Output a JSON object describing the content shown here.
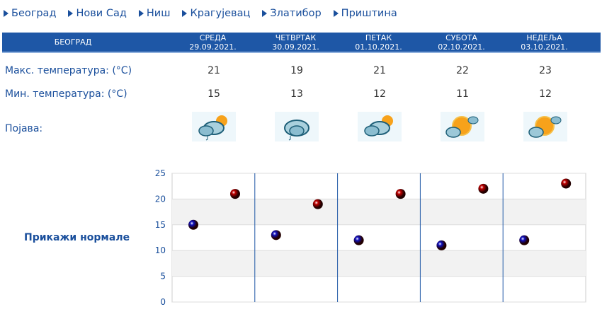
{
  "nav": [
    {
      "label": "Београд"
    },
    {
      "label": "Нови Сад"
    },
    {
      "label": "Ниш"
    },
    {
      "label": "Крагујевац"
    },
    {
      "label": "Златибор"
    },
    {
      "label": "Приштина"
    }
  ],
  "header": {
    "city": "БЕОГРАД",
    "days": [
      {
        "day": "СРЕДА",
        "date": "29.09.2021."
      },
      {
        "day": "ЧЕТВРТАК",
        "date": "30.09.2021."
      },
      {
        "day": "ПЕТАК",
        "date": "01.10.2021."
      },
      {
        "day": "СУБОТА",
        "date": "02.10.2021."
      },
      {
        "day": "НЕДЕЉА",
        "date": "03.10.2021."
      }
    ]
  },
  "rows": {
    "max_label": "Макс. температура: (°C)",
    "min_label": "Мин. температура: (°C)",
    "phen_label": "Појава:",
    "max": [
      "21",
      "19",
      "21",
      "22",
      "23"
    ],
    "min": [
      "15",
      "13",
      "12",
      "11",
      "12"
    ],
    "icons": [
      "partly-cloudy-rain-icon",
      "cloudy-rain-icon",
      "partly-cloudy-icon",
      "mostly-sunny-icon",
      "mostly-sunny-icon"
    ]
  },
  "show_normals": "Прикажи нормале",
  "chart_data": {
    "type": "scatter",
    "categories": [
      "29.09.2021.",
      "30.09.2021.",
      "01.10.2021.",
      "02.10.2021.",
      "03.10.2021."
    ],
    "series": [
      {
        "values": [
          15,
          13,
          12,
          11,
          12
        ],
        "color": "#1010c0"
      },
      {
        "values": [
          21,
          19,
          21,
          22,
          23
        ],
        "color": "#c00000"
      }
    ],
    "ylim": [
      0,
      25
    ],
    "yticks": [
      "0",
      "5",
      "10",
      "15",
      "20",
      "25"
    ],
    "grid": true
  }
}
